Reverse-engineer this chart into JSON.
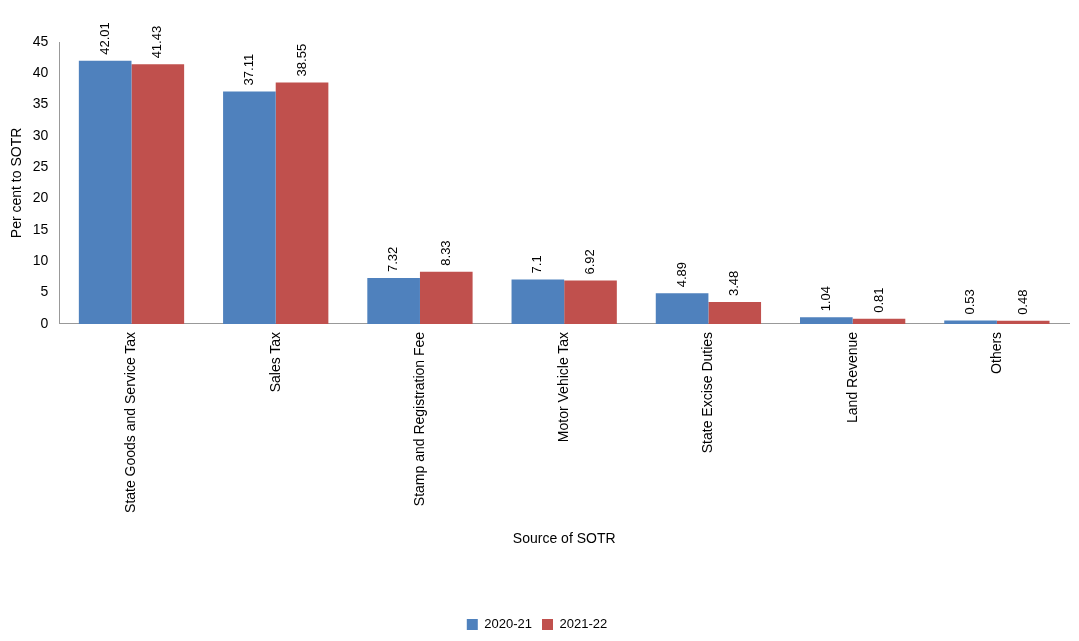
{
  "chart_data": {
    "type": "bar",
    "xlabel": "Source of SOTR",
    "ylabel": "Per cent to SOTR",
    "categories": [
      "State Goods and Service Tax",
      "Sales Tax",
      "Stamp and Registration Fee",
      "Motor Vehicle Tax",
      "State Excise Duties",
      "Land Revenue",
      "Others"
    ],
    "series": [
      {
        "name": "2020-21",
        "color": "#4f81bd",
        "values": [
          42.01,
          37.11,
          7.32,
          7.1,
          4.89,
          1.04,
          0.53
        ]
      },
      {
        "name": "2021-22",
        "color": "#c0504d",
        "values": [
          41.43,
          38.55,
          8.33,
          6.92,
          3.48,
          0.81,
          0.48
        ]
      }
    ],
    "ylim": [
      0,
      45
    ],
    "yticks": [
      0,
      5,
      10,
      15,
      20,
      25,
      30,
      35,
      40,
      45
    ],
    "grid": false,
    "legend": "bottom",
    "data_labels": true
  }
}
